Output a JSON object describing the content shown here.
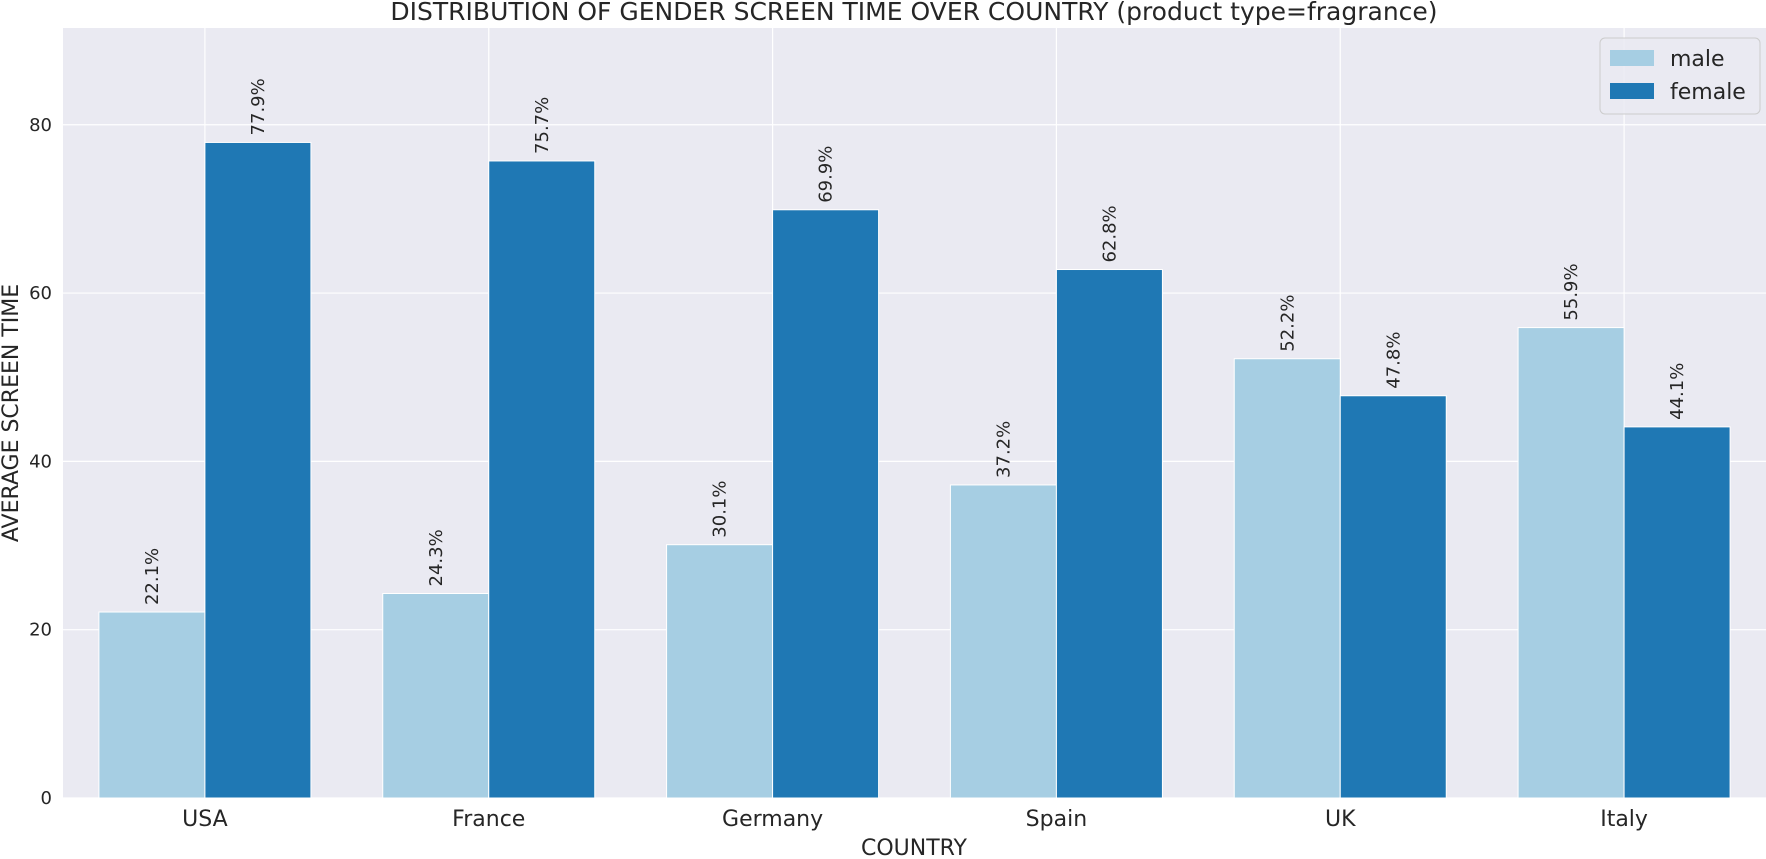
{
  "chart_data": {
    "type": "bar",
    "title": "DISTRIBUTION OF GENDER SCREEN TIME OVER COUNTRY (product type=fragrance)",
    "xlabel": "COUNTRY",
    "ylabel": "AVERAGE SCREEN TIME",
    "categories": [
      "USA",
      "France",
      "Germany",
      "Spain",
      "UK",
      "Italy"
    ],
    "series": [
      {
        "name": "male",
        "color": "#a6cee3",
        "values": [
          22.1,
          24.3,
          30.1,
          37.2,
          52.2,
          55.9
        ],
        "labels": [
          "22.1%",
          "24.3%",
          "30.1%",
          "37.2%",
          "52.2%",
          "55.9%"
        ]
      },
      {
        "name": "female",
        "color": "#1f78b4",
        "values": [
          77.9,
          75.7,
          69.9,
          62.8,
          47.8,
          44.1
        ],
        "labels": [
          "77.9%",
          "75.7%",
          "69.9%",
          "62.8%",
          "47.8%",
          "44.1%"
        ]
      }
    ],
    "yticks": [
      0,
      20,
      40,
      60,
      80
    ],
    "ylim": [
      0,
      91.5
    ],
    "grid": true,
    "legend_position": "top-right",
    "background_color": "#eaeaf2",
    "grid_color": "#ffffff"
  }
}
